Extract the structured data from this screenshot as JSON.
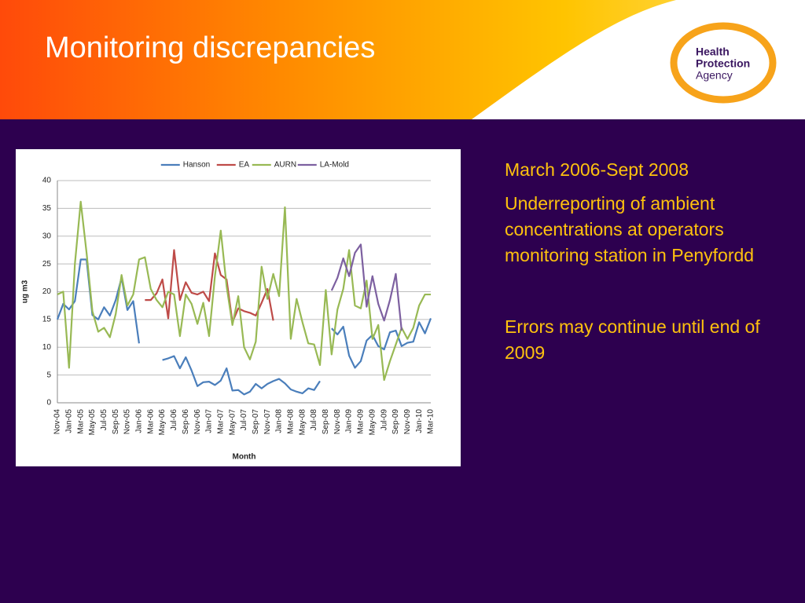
{
  "header": {
    "title": "Monitoring discrepancies",
    "logo": [
      "Health",
      "Protection",
      "Agency"
    ]
  },
  "notes": [
    "March 2006-Sept 2008",
    "Underreporting of ambient concentrations at operators monitoring station in Penyfordd",
    "Errors may continue until end of 2009"
  ],
  "chart_data": {
    "type": "line",
    "ylabel": "ug m3",
    "xlabel": "Month",
    "legend": "top",
    "grid": true,
    "ylim": [
      0,
      40
    ],
    "yticks": [
      0,
      5,
      10,
      15,
      20,
      25,
      30,
      35,
      40
    ],
    "categories": [
      "Nov-04",
      null,
      "Jan-05",
      null,
      "Mar-05",
      null,
      "May-05",
      null,
      "Jul-05",
      null,
      "Sep-05",
      null,
      "Nov-05",
      null,
      "Jan-06",
      null,
      "Mar-06",
      null,
      "May-06",
      null,
      "Jul-06",
      null,
      "Sep-06",
      null,
      "Nov-06",
      null,
      "Jan-07",
      null,
      "Mar-07",
      null,
      "May-07",
      null,
      "Jul-07",
      null,
      "Sep-07",
      null,
      "Nov-07",
      null,
      "Jan-08",
      null,
      "Mar-08",
      null,
      "May-08",
      null,
      "Jul-08",
      null,
      "Sep-08",
      null,
      "Nov-08",
      null,
      "Jan-09",
      null,
      "Mar-09",
      null,
      "May-09",
      null,
      "Jul-09",
      null,
      "Sep-09",
      null,
      "Nov-09",
      null,
      "Jan-10",
      null,
      "Mar-10"
    ],
    "series": [
      {
        "name": "Hanson",
        "color": "#4a7ebb",
        "values": [
          15,
          17.8,
          16.8,
          18.3,
          25.8,
          25.8,
          15.8,
          15,
          17.2,
          15.7,
          18.5,
          22.5,
          16.7,
          18.3,
          10.7,
          null,
          null,
          null,
          7.7,
          8,
          8.4,
          6.2,
          8.2,
          5.8,
          3,
          3.7,
          3.8,
          3.2,
          4,
          6.2,
          2.2,
          2.3,
          1.5,
          2,
          3.4,
          2.6,
          3.4,
          3.9,
          4.3,
          3.5,
          2.4,
          2,
          1.7,
          2.6,
          2.3,
          3.9,
          null,
          13.4,
          12.3,
          13.7,
          8.5,
          6.3,
          7.5,
          11.2,
          12.2,
          10.2,
          9.6,
          12.7,
          13,
          10.2,
          10.8,
          11,
          14.5,
          12.5,
          15.2
        ]
      },
      {
        "name": "EA",
        "color": "#be4b48",
        "values": [
          null,
          null,
          null,
          null,
          null,
          null,
          null,
          null,
          null,
          null,
          null,
          null,
          null,
          null,
          null,
          18.5,
          18.5,
          19.7,
          22.2,
          15.2,
          27.5,
          18.5,
          21.7,
          19.8,
          19.5,
          20,
          18.3,
          26.9,
          23,
          22.2,
          14.5,
          17,
          16.5,
          16.2,
          15.7,
          18,
          20.5,
          14.8,
          null,
          null,
          null,
          null,
          null,
          null,
          null,
          null,
          null,
          null,
          null,
          null,
          null,
          null,
          null,
          null,
          null,
          null,
          null,
          null,
          null,
          null,
          null,
          null,
          null,
          null,
          null
        ]
      },
      {
        "name": "AURN",
        "color": "#98b954",
        "values": [
          19.5,
          20,
          6.3,
          25,
          36.2,
          27,
          16.5,
          12.8,
          13.5,
          11.8,
          16,
          23,
          17.5,
          19.5,
          25.8,
          26.2,
          20.5,
          18.5,
          17.2,
          20,
          19.5,
          12,
          19.5,
          17.8,
          14.2,
          18,
          12,
          22.8,
          31,
          21,
          14,
          19.2,
          10,
          7.8,
          11,
          24.5,
          18.7,
          23.2,
          19.2,
          35.2,
          11.5,
          18.7,
          14.5,
          10.7,
          10.5,
          6.8,
          20.3,
          8.7,
          16.8,
          20.5,
          27.5,
          17.5,
          17,
          22,
          11.5,
          14,
          4.1,
          7.5,
          10.5,
          13.5,
          11.5,
          13.5,
          17.5,
          19.5,
          19.5
        ]
      },
      {
        "name": "LA-Mold",
        "color": "#7d60a0",
        "values": [
          null,
          null,
          null,
          null,
          null,
          null,
          null,
          null,
          null,
          null,
          null,
          null,
          null,
          null,
          null,
          null,
          null,
          null,
          null,
          null,
          null,
          null,
          null,
          null,
          null,
          null,
          null,
          null,
          null,
          null,
          null,
          null,
          null,
          null,
          null,
          null,
          null,
          null,
          null,
          null,
          null,
          null,
          null,
          null,
          null,
          null,
          null,
          20.2,
          22.5,
          26,
          22.8,
          27,
          28.5,
          17.3,
          22.8,
          17.8,
          14.8,
          18.5,
          23.2,
          13,
          null,
          null,
          null,
          null,
          null
        ]
      }
    ]
  }
}
